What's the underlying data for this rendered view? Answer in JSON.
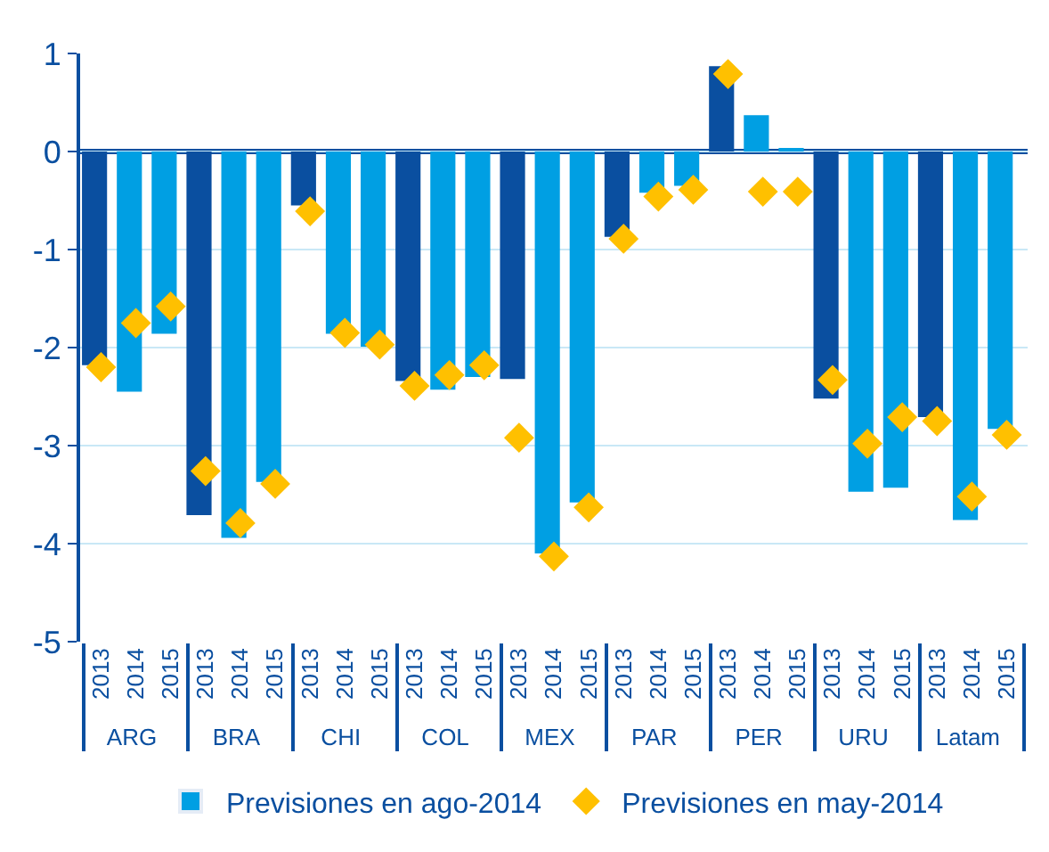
{
  "chart_data": {
    "type": "bar",
    "categories": [
      "2013",
      "2014",
      "2015",
      "2013",
      "2014",
      "2015",
      "2013",
      "2014",
      "2015",
      "2013",
      "2014",
      "2015",
      "2013",
      "2014",
      "2015",
      "2013",
      "2014",
      "2015",
      "2013",
      "2014",
      "2015",
      "2013",
      "2014",
      "2015",
      "2013",
      "2014",
      "2015"
    ],
    "annotations": [
      "ARG",
      "BRA",
      "CHI",
      "COL",
      "MEX",
      "PAR",
      "PER",
      "URU",
      "Latam"
    ],
    "series": [
      {
        "name": "Previsiones en ago-2014",
        "color": "#009fe3",
        "colors": [
          "#0a4fa0",
          "#009fe3",
          "#009fe3",
          "#0a4fa0",
          "#009fe3",
          "#009fe3",
          "#0a4fa0",
          "#009fe3",
          "#009fe3",
          "#0a4fa0",
          "#009fe3",
          "#009fe3",
          "#0a4fa0",
          "#009fe3",
          "#009fe3",
          "#0a4fa0",
          "#009fe3",
          "#009fe3",
          "#0a4fa0",
          "#009fe3",
          "#009fe3",
          "#0a4fa0",
          "#009fe3",
          "#009fe3",
          "#0a4fa0",
          "#009fe3",
          "#009fe3"
        ],
        "values": [
          -2.18,
          -2.45,
          -1.86,
          -3.71,
          -3.94,
          -3.37,
          -0.55,
          -1.86,
          -1.99,
          -2.34,
          -2.43,
          -2.3,
          -2.32,
          -4.1,
          -3.58,
          -0.87,
          -0.42,
          -0.35,
          0.87,
          0.37,
          0.02,
          -2.52,
          -3.47,
          -3.43,
          -2.71,
          -3.76,
          -2.83
        ]
      },
      {
        "name": "Previsiones en may-2014",
        "type": "scatter",
        "color": "#ffc000",
        "marker": "diamond",
        "values": [
          -2.2,
          -1.75,
          -1.58,
          -3.26,
          -3.79,
          -3.39,
          -0.61,
          -1.85,
          -1.97,
          -2.39,
          -2.28,
          -2.18,
          -2.92,
          -4.13,
          -3.63,
          -0.89,
          -0.46,
          -0.39,
          0.79,
          -0.41,
          -0.41,
          -2.33,
          -2.98,
          -2.71,
          -2.75,
          -3.52,
          -2.89
        ]
      }
    ],
    "ylim": [
      -5,
      1
    ],
    "yticks": [
      -5,
      -4,
      -3,
      -2,
      -1,
      0,
      1
    ],
    "ref_lines": [
      {
        "axis": "y",
        "value": 0,
        "color": "#0a4fa0"
      }
    ],
    "grid": "y",
    "legend": "bottom"
  }
}
